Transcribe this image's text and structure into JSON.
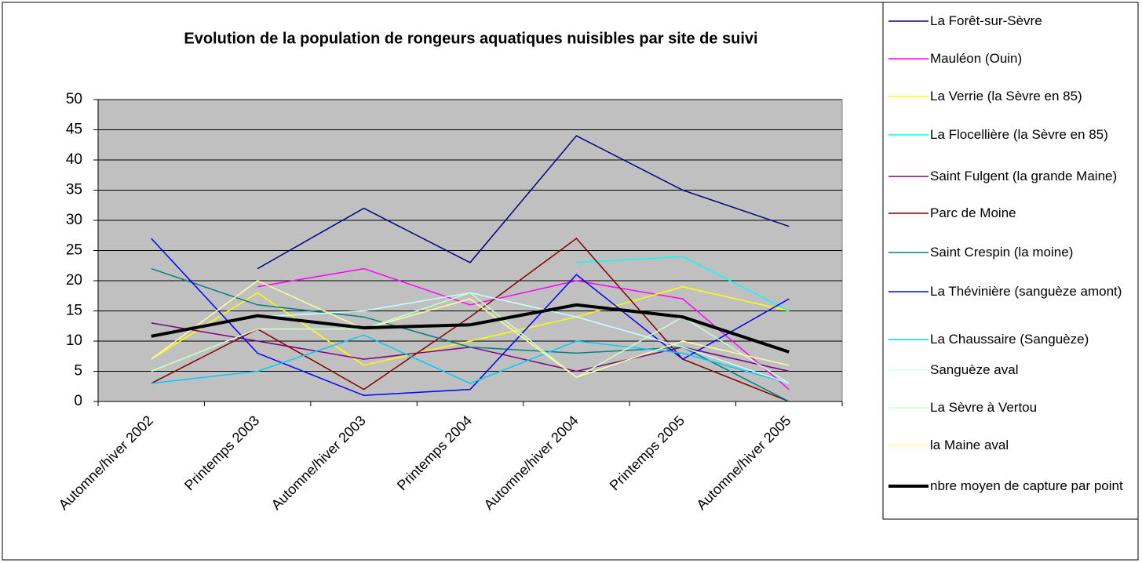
{
  "chart_data": {
    "type": "line",
    "title": "Evolution de la population de rongeurs aquatiques nuisibles par site de suivi",
    "categories": [
      "Automne/hiver 2002",
      "Printemps 2003",
      "Automne/hiver  2003",
      "Printemps 2004",
      "Automne/hiver  2004",
      "Printemps 2005",
      "Automne/hiver  2005"
    ],
    "ylim": [
      0,
      50
    ],
    "yticks": [
      0,
      5,
      10,
      15,
      20,
      25,
      30,
      35,
      40,
      45,
      50
    ],
    "grid": true,
    "legend": "right",
    "series": [
      {
        "name": "La Forêt-sur-Sèvre",
        "color": "#000080",
        "values": [
          null,
          22,
          32,
          23,
          44,
          35,
          29
        ]
      },
      {
        "name": "Mauléon (Ouin)",
        "color": "#ff00ff",
        "values": [
          null,
          19,
          22,
          16,
          20,
          17,
          2
        ]
      },
      {
        "name": "La Verrie (la Sèvre en 85)",
        "color": "#ffff00",
        "values": [
          7,
          18,
          6,
          10,
          14,
          19,
          15
        ]
      },
      {
        "name": "La Flocellière (la Sèvre en 85)",
        "color": "#00ffff",
        "values": [
          null,
          null,
          null,
          null,
          23,
          24,
          15
        ]
      },
      {
        "name": "Saint Fulgent (la grande Maine)",
        "color": "#800080",
        "values": [
          13,
          10,
          7,
          9,
          5,
          9,
          5
        ]
      },
      {
        "name": "Parc de Moine",
        "color": "#800000",
        "values": [
          3,
          12,
          2,
          14,
          27,
          7,
          0
        ]
      },
      {
        "name": "Saint Crespin (la moine)",
        "color": "#008080",
        "values": [
          22,
          16,
          14,
          9,
          8,
          9,
          0
        ]
      },
      {
        "name": "La Thévinière (sanguèze amont)",
        "color": "#0000ff",
        "values": [
          27,
          8,
          1,
          2,
          21,
          7,
          17
        ]
      },
      {
        "name": "La Chaussaire (Sanguèze)",
        "color": "#00ccff",
        "values": [
          3,
          5,
          11,
          3,
          10,
          8,
          3
        ]
      },
      {
        "name": "Sanguèze aval",
        "color": "#ccffff",
        "values": [
          null,
          14,
          15,
          18,
          14,
          9,
          3
        ]
      },
      {
        "name": "La Sèvre à Vertou",
        "color": "#ccffcc",
        "values": [
          5,
          12,
          12,
          18,
          4,
          14,
          3
        ]
      },
      {
        "name": "la Maine aval",
        "color": "#ffff99",
        "values": [
          7,
          20,
          12,
          17,
          4,
          10,
          6
        ]
      },
      {
        "name": "nbre moyen de capture par point",
        "color": "#000000",
        "values": [
          10.8,
          14.2,
          12.2,
          12.7,
          16,
          14,
          8.2
        ]
      }
    ]
  }
}
